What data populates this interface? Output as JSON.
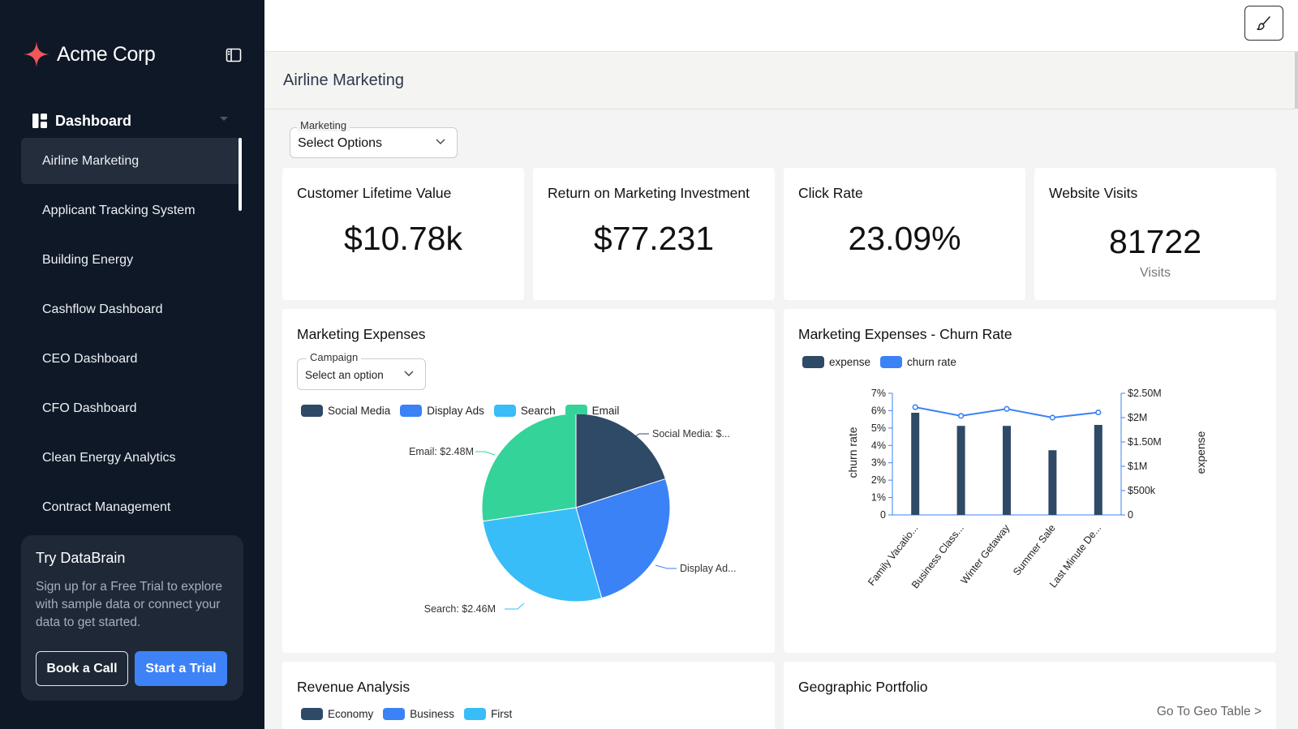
{
  "brand": {
    "name": "Acme Corp"
  },
  "sidebar": {
    "section_label": "Dashboard",
    "items": [
      {
        "label": "Airline Marketing",
        "active": true
      },
      {
        "label": "Applicant Tracking System"
      },
      {
        "label": "Building Energy"
      },
      {
        "label": "Cashflow Dashboard"
      },
      {
        "label": "CEO Dashboard"
      },
      {
        "label": "CFO Dashboard"
      },
      {
        "label": "Clean Energy Analytics"
      },
      {
        "label": "Contract Management"
      }
    ],
    "trial": {
      "title": "Try DataBrain",
      "text": "Sign up for a Free Trial to explore with sample data or connect your data to get started.",
      "book_label": "Book a Call",
      "start_label": "Start a Trial"
    }
  },
  "page": {
    "title": "Airline Marketing"
  },
  "filter": {
    "label": "Marketing",
    "value": "Select Options"
  },
  "kpis": [
    {
      "title": "Customer Lifetime Value",
      "value": "$10.78k"
    },
    {
      "title": "Return on Marketing Investment",
      "value": "$77.231"
    },
    {
      "title": "Click Rate",
      "value": "23.09%"
    },
    {
      "title": "Website Visits",
      "value": "81722",
      "sub": "Visits"
    }
  ],
  "marketing_expenses": {
    "title": "Marketing Expenses",
    "select": {
      "label": "Campaign",
      "value": "Select an option"
    }
  },
  "churn": {
    "title": "Marketing Expenses - Churn Rate"
  },
  "revenue": {
    "title": "Revenue Analysis"
  },
  "geo": {
    "title": "Geographic Portfolio",
    "link": "Go To Geo Table >"
  },
  "colors": {
    "dark": "#2f4a66",
    "blue": "#3b82f6",
    "sky": "#38bdf8",
    "green": "#34d399",
    "accent": "#3e82f7"
  },
  "chart_data": [
    {
      "type": "pie",
      "title": "Marketing Expenses",
      "legend": [
        "Social Media",
        "Display Ads",
        "Search",
        "Email"
      ],
      "slice_labels": [
        "Social Media: $...",
        "Display Ad...",
        "Search: $2.46M",
        "Email: $2.48M"
      ],
      "values": [
        1.82,
        2.32,
        2.46,
        2.48
      ],
      "colors": [
        "#2f4a66",
        "#3b82f6",
        "#38bdf8",
        "#34d399"
      ]
    },
    {
      "type": "bar+line",
      "title": "Marketing Expenses - Churn Rate",
      "legend": [
        "expense",
        "churn rate"
      ],
      "categories": [
        "Family Vacatio...",
        "Business Class...",
        "Winter Getaway",
        "Summer Sale",
        "Last Minute De..."
      ],
      "series": [
        {
          "name": "expense",
          "type": "bar",
          "axis": "right",
          "values": [
            2100000,
            1830000,
            1830000,
            1330000,
            1850000
          ]
        },
        {
          "name": "churn rate",
          "type": "line",
          "axis": "left",
          "values": [
            6.2,
            5.7,
            6.1,
            5.6,
            5.9
          ]
        }
      ],
      "ylabel_left": "churn rate",
      "ylabel_right": "expense",
      "left_ticks": [
        "0",
        "1%",
        "2%",
        "3%",
        "4%",
        "5%",
        "6%",
        "7%"
      ],
      "right_ticks": [
        "0",
        "$500k",
        "$1M",
        "$1.50M",
        "$2M",
        "$2.50M"
      ],
      "ylim_left": [
        0,
        7
      ],
      "ylim_right": [
        0,
        2500000
      ]
    },
    {
      "type": "bar",
      "title": "Revenue Analysis",
      "legend": [
        "Economy",
        "Business",
        "First"
      ]
    }
  ]
}
